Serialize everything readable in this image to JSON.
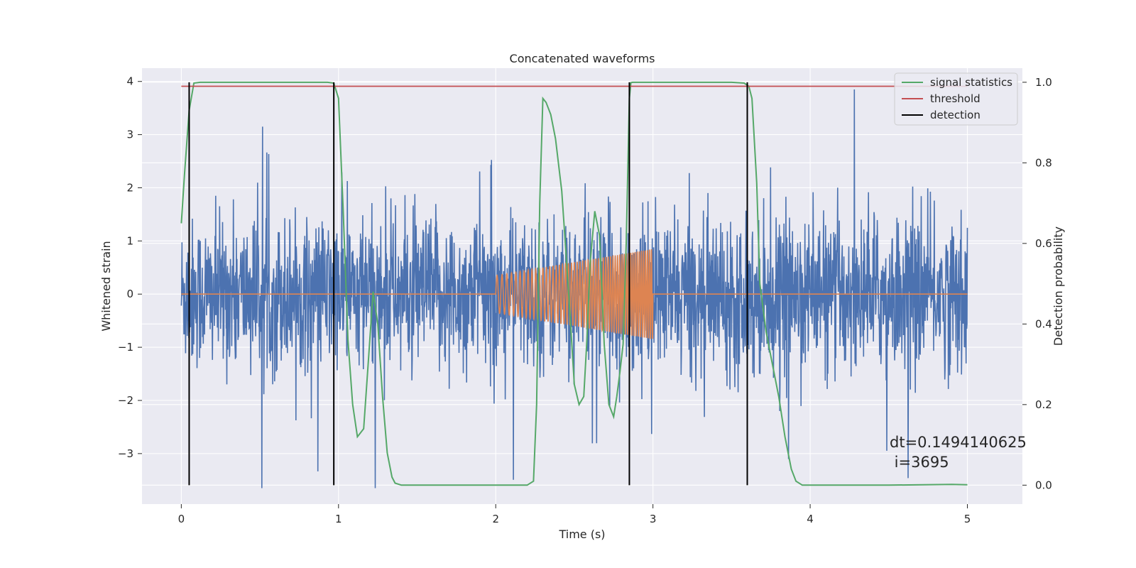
{
  "chart_data": {
    "type": "line",
    "title": "Concatenated waveforms",
    "xlabel": "Time (s)",
    "ylabel": "Whitened strain",
    "y2label": "Detection probability",
    "xlim": [
      -0.25,
      5.35
    ],
    "ylim": [
      -3.95,
      4.25
    ],
    "y2lim": [
      -0.047,
      1.035
    ],
    "xticks": [
      0,
      1,
      2,
      3,
      4,
      5
    ],
    "yticks": [
      -3,
      -2,
      -1,
      0,
      1,
      2,
      3,
      4
    ],
    "y2ticks": [
      0.0,
      0.2,
      0.4,
      0.6,
      0.8,
      1.0
    ],
    "grid": true,
    "legend_position": "top-right",
    "series": [
      {
        "name": "",
        "axis": "left",
        "color": "#4c72b0",
        "description_values": "whitened strain noise",
        "x_range": [
          0,
          5
        ],
        "approx_std": 0.7,
        "peak_max": 3.85,
        "peak_min": -3.65
      },
      {
        "name": "",
        "axis": "left",
        "color": "#dd8452",
        "x_range": [
          0,
          5
        ],
        "chirp_start": 2.0,
        "chirp_end": 3.0,
        "amp_start": 0.35,
        "amp_end": 0.85
      },
      {
        "name": "signal statistics",
        "axis": "right",
        "color": "#55a868",
        "x": [
          0,
          0.02,
          0.05,
          0.08,
          0.12,
          0.5,
          0.93,
          0.97,
          1.0,
          1.03,
          1.06,
          1.09,
          1.12,
          1.16,
          1.19,
          1.22,
          1.25,
          1.28,
          1.31,
          1.34,
          1.36,
          1.4,
          2.2,
          2.24,
          2.26,
          2.28,
          2.3,
          2.32,
          2.35,
          2.38,
          2.42,
          2.46,
          2.5,
          2.53,
          2.56,
          2.58,
          2.6,
          2.63,
          2.66,
          2.69,
          2.72,
          2.75,
          2.77,
          2.79,
          2.81,
          2.83,
          2.85,
          2.86,
          2.87,
          2.9,
          3.0,
          3.5,
          3.58,
          3.61,
          3.63,
          3.66,
          3.68,
          3.72,
          3.76,
          3.8,
          3.84,
          3.88,
          3.91,
          3.95,
          4.5,
          4.9,
          5.0
        ],
        "y": [
          0.65,
          0.77,
          0.93,
          0.998,
          1.0,
          1.0,
          1.0,
          0.998,
          0.96,
          0.68,
          0.36,
          0.2,
          0.12,
          0.14,
          0.31,
          0.48,
          0.4,
          0.22,
          0.08,
          0.02,
          0.005,
          0.0,
          0.0,
          0.01,
          0.2,
          0.7,
          0.96,
          0.95,
          0.92,
          0.86,
          0.73,
          0.5,
          0.25,
          0.2,
          0.22,
          0.36,
          0.55,
          0.68,
          0.62,
          0.35,
          0.2,
          0.17,
          0.22,
          0.28,
          0.35,
          0.6,
          0.96,
          0.999,
          1.0,
          1.0,
          1.0,
          1.0,
          0.998,
          0.99,
          0.96,
          0.75,
          0.5,
          0.38,
          0.3,
          0.22,
          0.12,
          0.04,
          0.01,
          0.0,
          0.0,
          0.002,
          0.001
        ]
      },
      {
        "name": "threshold",
        "axis": "right",
        "color": "#c44e52",
        "x": [
          0,
          5
        ],
        "y": [
          0.99,
          0.99
        ]
      },
      {
        "name": "detection",
        "axis": "right",
        "color": "#000000",
        "type": "vlines",
        "x": [
          0.05,
          0.97,
          2.85,
          3.6
        ],
        "ymin": 0.0,
        "ymax": 1.0
      }
    ],
    "annotations": [
      "dt=0.1494140625",
      " i=3695"
    ]
  }
}
